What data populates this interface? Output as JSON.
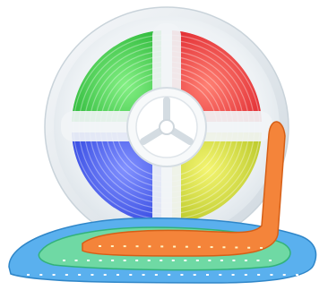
{
  "image": {
    "subject": "led-strip-reel",
    "colors": {
      "green_quadrant": "#3ed64a",
      "red_quadrant": "#f2393a",
      "blue_quadrant": "#3e5bf0",
      "yellow_quadrant": "#d8e03a",
      "reel_frosted": "#e8eef2",
      "strip_blue": "#4aa6e8",
      "strip_green": "#57d39a",
      "strip_orange": "#f07a2c",
      "background": "#ffffff"
    }
  }
}
